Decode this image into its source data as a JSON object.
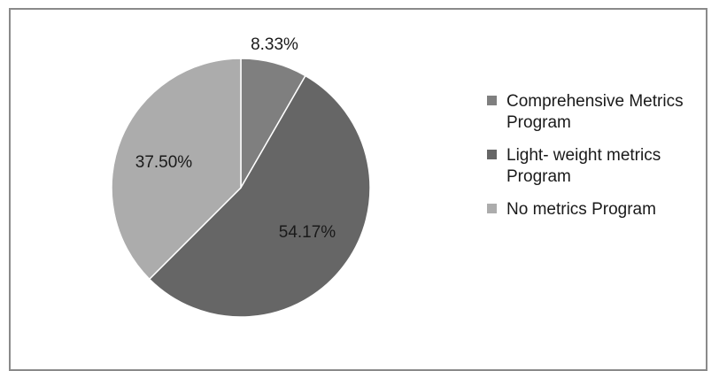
{
  "chart_data": {
    "type": "pie",
    "title": "",
    "categories": [
      "Comprehensive Metrics Program",
      "Light- weight metrics Program",
      "No metrics Program"
    ],
    "values": [
      8.33,
      54.17,
      37.5
    ],
    "data_labels": [
      "8.33%",
      "54.17%",
      "37.50%"
    ],
    "colors": [
      "#7f7f7f",
      "#666666",
      "#acacac"
    ],
    "legend_placement": "right",
    "legend": [
      {
        "label": "Comprehensive Metrics Program",
        "color": "#7f7f7f"
      },
      {
        "label": "Light- weight metrics Program",
        "color": "#666666"
      },
      {
        "label": "No metrics Program",
        "color": "#acacac"
      }
    ]
  }
}
